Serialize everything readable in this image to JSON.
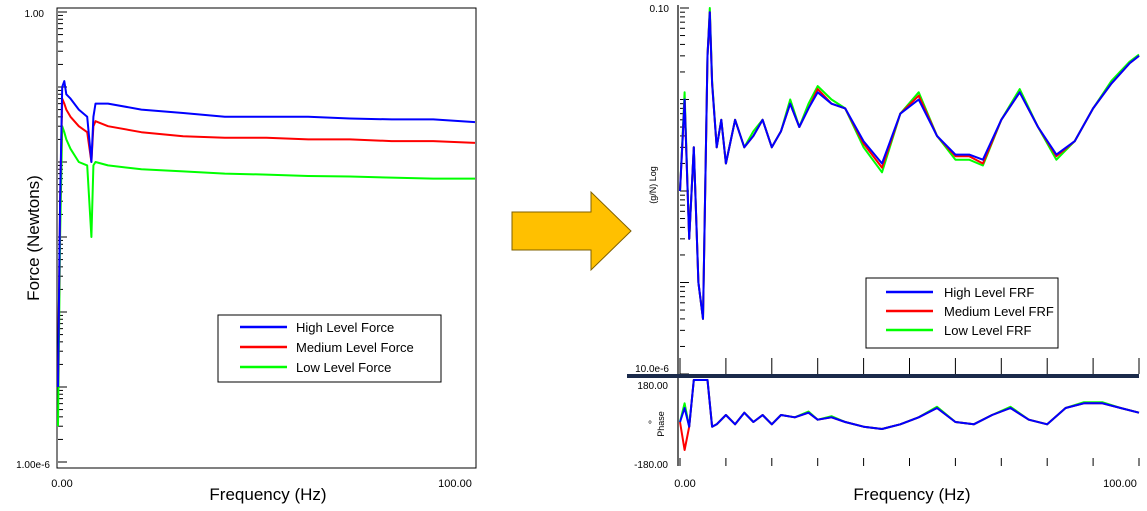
{
  "colors": {
    "high": "#0000ff",
    "medium": "#ff0000",
    "low": "#00ff00",
    "arrow_fill": "#ffc000",
    "arrow_stroke": "#7f6000"
  },
  "arrow": {
    "icon": "right-arrow-icon"
  },
  "chart_data": [
    {
      "type": "line",
      "ylabel": "Force (Newtons)",
      "xlabel": "Frequency (Hz)",
      "xlim": [
        0,
        100
      ],
      "ylim": [
        1e-06,
        1
      ],
      "yscale": "log",
      "x_tick_labels": [
        "0.00",
        "100.00"
      ],
      "y_tick_labels": [
        "1.00",
        "1.00e-6"
      ],
      "legend": {
        "position": "lower-right",
        "entries": [
          "High Level Force",
          "Medium Level Force",
          "Low Level Force"
        ]
      },
      "series": [
        {
          "name": "High Level Force",
          "color": "#0000ff",
          "x": [
            0,
            0.5,
            1,
            1.5,
            2,
            3,
            5,
            7,
            8,
            8.5,
            9,
            12,
            20,
            30,
            40,
            50,
            60,
            70,
            80,
            90,
            100
          ],
          "y": [
            1e-05,
            0.003,
            0.1,
            0.12,
            0.08,
            0.07,
            0.05,
            0.04,
            0.01,
            0.04,
            0.06,
            0.06,
            0.05,
            0.045,
            0.04,
            0.04,
            0.04,
            0.038,
            0.037,
            0.037,
            0.034
          ]
        },
        {
          "name": "Medium Level Force",
          "color": "#ff0000",
          "x": [
            0,
            0.5,
            1,
            1.5,
            2,
            3,
            5,
            7,
            8,
            8.5,
            9,
            12,
            20,
            30,
            40,
            50,
            60,
            70,
            80,
            90,
            100
          ],
          "y": [
            1e-05,
            0.003,
            0.07,
            0.06,
            0.05,
            0.04,
            0.03,
            0.025,
            0.01,
            0.03,
            0.035,
            0.03,
            0.025,
            0.022,
            0.021,
            0.021,
            0.02,
            0.02,
            0.019,
            0.019,
            0.018
          ]
        },
        {
          "name": "Low Level Force",
          "color": "#00ff00",
          "x": [
            0,
            0.5,
            1,
            1.5,
            2,
            3,
            5,
            7,
            8,
            8.5,
            9,
            12,
            20,
            30,
            40,
            50,
            60,
            70,
            80,
            90,
            100
          ],
          "y": [
            3e-06,
            0.001,
            0.03,
            0.025,
            0.02,
            0.015,
            0.01,
            0.009,
            0.001,
            0.009,
            0.01,
            0.009,
            0.008,
            0.0075,
            0.007,
            0.0068,
            0.0065,
            0.0064,
            0.0062,
            0.006,
            0.006
          ]
        }
      ]
    },
    {
      "type": "line",
      "xlabel": "Frequency (Hz)",
      "ylabel": "(g/N) Log",
      "xlim": [
        0,
        100
      ],
      "ylim": [
        1e-05,
        0.1
      ],
      "yscale": "log",
      "x_tick_labels": [
        "0.00",
        "100.00"
      ],
      "y_tick_labels": [
        "0.10",
        "10.0e-6"
      ],
      "legend": {
        "position": "lower-right",
        "entries": [
          "High Level FRF",
          "Medium Level FRF",
          "Low Level FRF"
        ]
      },
      "series": [
        {
          "name": "High Level FRF",
          "color": "#0000ff",
          "x": [
            0,
            1,
            2,
            3,
            4,
            5,
            6,
            6.5,
            7,
            8,
            9,
            10,
            12,
            14,
            16,
            18,
            20,
            22,
            24,
            26,
            28,
            30,
            33,
            36,
            40,
            44,
            48,
            52,
            56,
            60,
            63,
            66,
            70,
            74,
            78,
            82,
            86,
            90,
            94,
            98,
            100
          ],
          "y": [
            0.001,
            0.01,
            0.0003,
            0.003,
            0.0001,
            4e-05,
            0.03,
            0.09,
            0.015,
            0.003,
            0.006,
            0.002,
            0.006,
            0.003,
            0.004,
            0.006,
            0.003,
            0.0045,
            0.009,
            0.005,
            0.008,
            0.012,
            0.009,
            0.008,
            0.0035,
            0.002,
            0.007,
            0.01,
            0.004,
            0.0025,
            0.0025,
            0.0022,
            0.006,
            0.012,
            0.005,
            0.0025,
            0.0035,
            0.008,
            0.015,
            0.025,
            0.03
          ]
        },
        {
          "name": "Medium Level FRF",
          "color": "#ff0000",
          "x": [
            0,
            1,
            2,
            3,
            4,
            5,
            6,
            6.5,
            7,
            8,
            9,
            10,
            12,
            14,
            16,
            18,
            20,
            22,
            24,
            26,
            28,
            30,
            33,
            36,
            40,
            44,
            48,
            52,
            56,
            60,
            63,
            66,
            70,
            74,
            78,
            82,
            86,
            90,
            94,
            98,
            100
          ],
          "y": [
            0.001,
            0.01,
            0.0003,
            0.003,
            0.0001,
            4e-05,
            0.03,
            0.09,
            0.015,
            0.003,
            0.006,
            0.002,
            0.006,
            0.003,
            0.004,
            0.006,
            0.003,
            0.0045,
            0.009,
            0.005,
            0.008,
            0.013,
            0.009,
            0.008,
            0.0033,
            0.0018,
            0.007,
            0.011,
            0.004,
            0.0024,
            0.0024,
            0.002,
            0.006,
            0.012,
            0.005,
            0.0024,
            0.0035,
            0.008,
            0.015,
            0.025,
            0.03
          ]
        },
        {
          "name": "Low Level FRF",
          "color": "#00ff00",
          "x": [
            0,
            1,
            2,
            3,
            4,
            5,
            6,
            6.5,
            7,
            8,
            9,
            10,
            12,
            14,
            16,
            18,
            20,
            22,
            24,
            26,
            28,
            30,
            33,
            36,
            40,
            44,
            48,
            52,
            56,
            60,
            63,
            66,
            70,
            74,
            78,
            82,
            86,
            90,
            94,
            98,
            100
          ],
          "y": [
            0.001,
            0.012,
            0.0003,
            0.003,
            0.0001,
            4e-05,
            0.03,
            0.1,
            0.016,
            0.003,
            0.006,
            0.002,
            0.006,
            0.003,
            0.0045,
            0.006,
            0.003,
            0.0045,
            0.01,
            0.005,
            0.009,
            0.014,
            0.01,
            0.008,
            0.003,
            0.0016,
            0.007,
            0.012,
            0.004,
            0.0022,
            0.0022,
            0.0019,
            0.006,
            0.013,
            0.005,
            0.0022,
            0.0035,
            0.008,
            0.016,
            0.026,
            0.031
          ]
        }
      ]
    },
    {
      "type": "line",
      "ylabel": "Phase",
      "yunit": "°",
      "xlim": [
        0,
        100
      ],
      "ylim": [
        -180,
        180
      ],
      "y_tick_labels": [
        "180.00",
        "-180.00"
      ],
      "series": [
        {
          "name": "High Level FRF",
          "color": "#0000ff",
          "x": [
            0,
            1,
            2,
            3,
            4,
            5,
            6,
            7,
            8,
            10,
            12,
            14,
            16,
            18,
            20,
            22,
            25,
            28,
            30,
            33,
            36,
            40,
            44,
            48,
            52,
            56,
            60,
            64,
            68,
            72,
            76,
            80,
            84,
            88,
            92,
            96,
            100
          ],
          "y": [
            0,
            60,
            -20,
            180,
            180,
            180,
            180,
            -20,
            -10,
            30,
            -10,
            40,
            0,
            30,
            -10,
            30,
            20,
            40,
            10,
            20,
            0,
            -20,
            -30,
            -10,
            20,
            60,
            0,
            -10,
            30,
            60,
            10,
            -10,
            60,
            80,
            80,
            60,
            40
          ]
        },
        {
          "name": "Medium Level FRF",
          "color": "#ff0000",
          "x": [
            0,
            1,
            2,
            3,
            4,
            5,
            6,
            7,
            8,
            10,
            12,
            14,
            16,
            18,
            20,
            22,
            25,
            28,
            30,
            33,
            36,
            40,
            44,
            48,
            52,
            56,
            60,
            64,
            68,
            72,
            76,
            80,
            84,
            88,
            92,
            96,
            100
          ],
          "y": [
            0,
            -120,
            -20,
            180,
            180,
            180,
            180,
            -20,
            -10,
            30,
            -10,
            40,
            0,
            30,
            -10,
            30,
            20,
            40,
            10,
            20,
            0,
            -20,
            -30,
            -10,
            20,
            60,
            0,
            -10,
            30,
            60,
            10,
            -10,
            60,
            80,
            80,
            60,
            40
          ]
        },
        {
          "name": "Low Level FRF",
          "color": "#00ff00",
          "x": [
            0,
            1,
            2,
            3,
            4,
            5,
            6,
            7,
            8,
            10,
            12,
            14,
            16,
            18,
            20,
            22,
            25,
            28,
            30,
            33,
            36,
            40,
            44,
            48,
            52,
            56,
            60,
            64,
            68,
            72,
            76,
            80,
            84,
            88,
            92,
            96,
            100
          ],
          "y": [
            0,
            80,
            -20,
            180,
            180,
            180,
            180,
            -20,
            -10,
            30,
            -10,
            40,
            0,
            30,
            -10,
            30,
            20,
            45,
            10,
            25,
            0,
            -20,
            -30,
            -10,
            20,
            65,
            0,
            -10,
            30,
            65,
            10,
            -10,
            60,
            85,
            85,
            60,
            40
          ]
        }
      ]
    }
  ]
}
